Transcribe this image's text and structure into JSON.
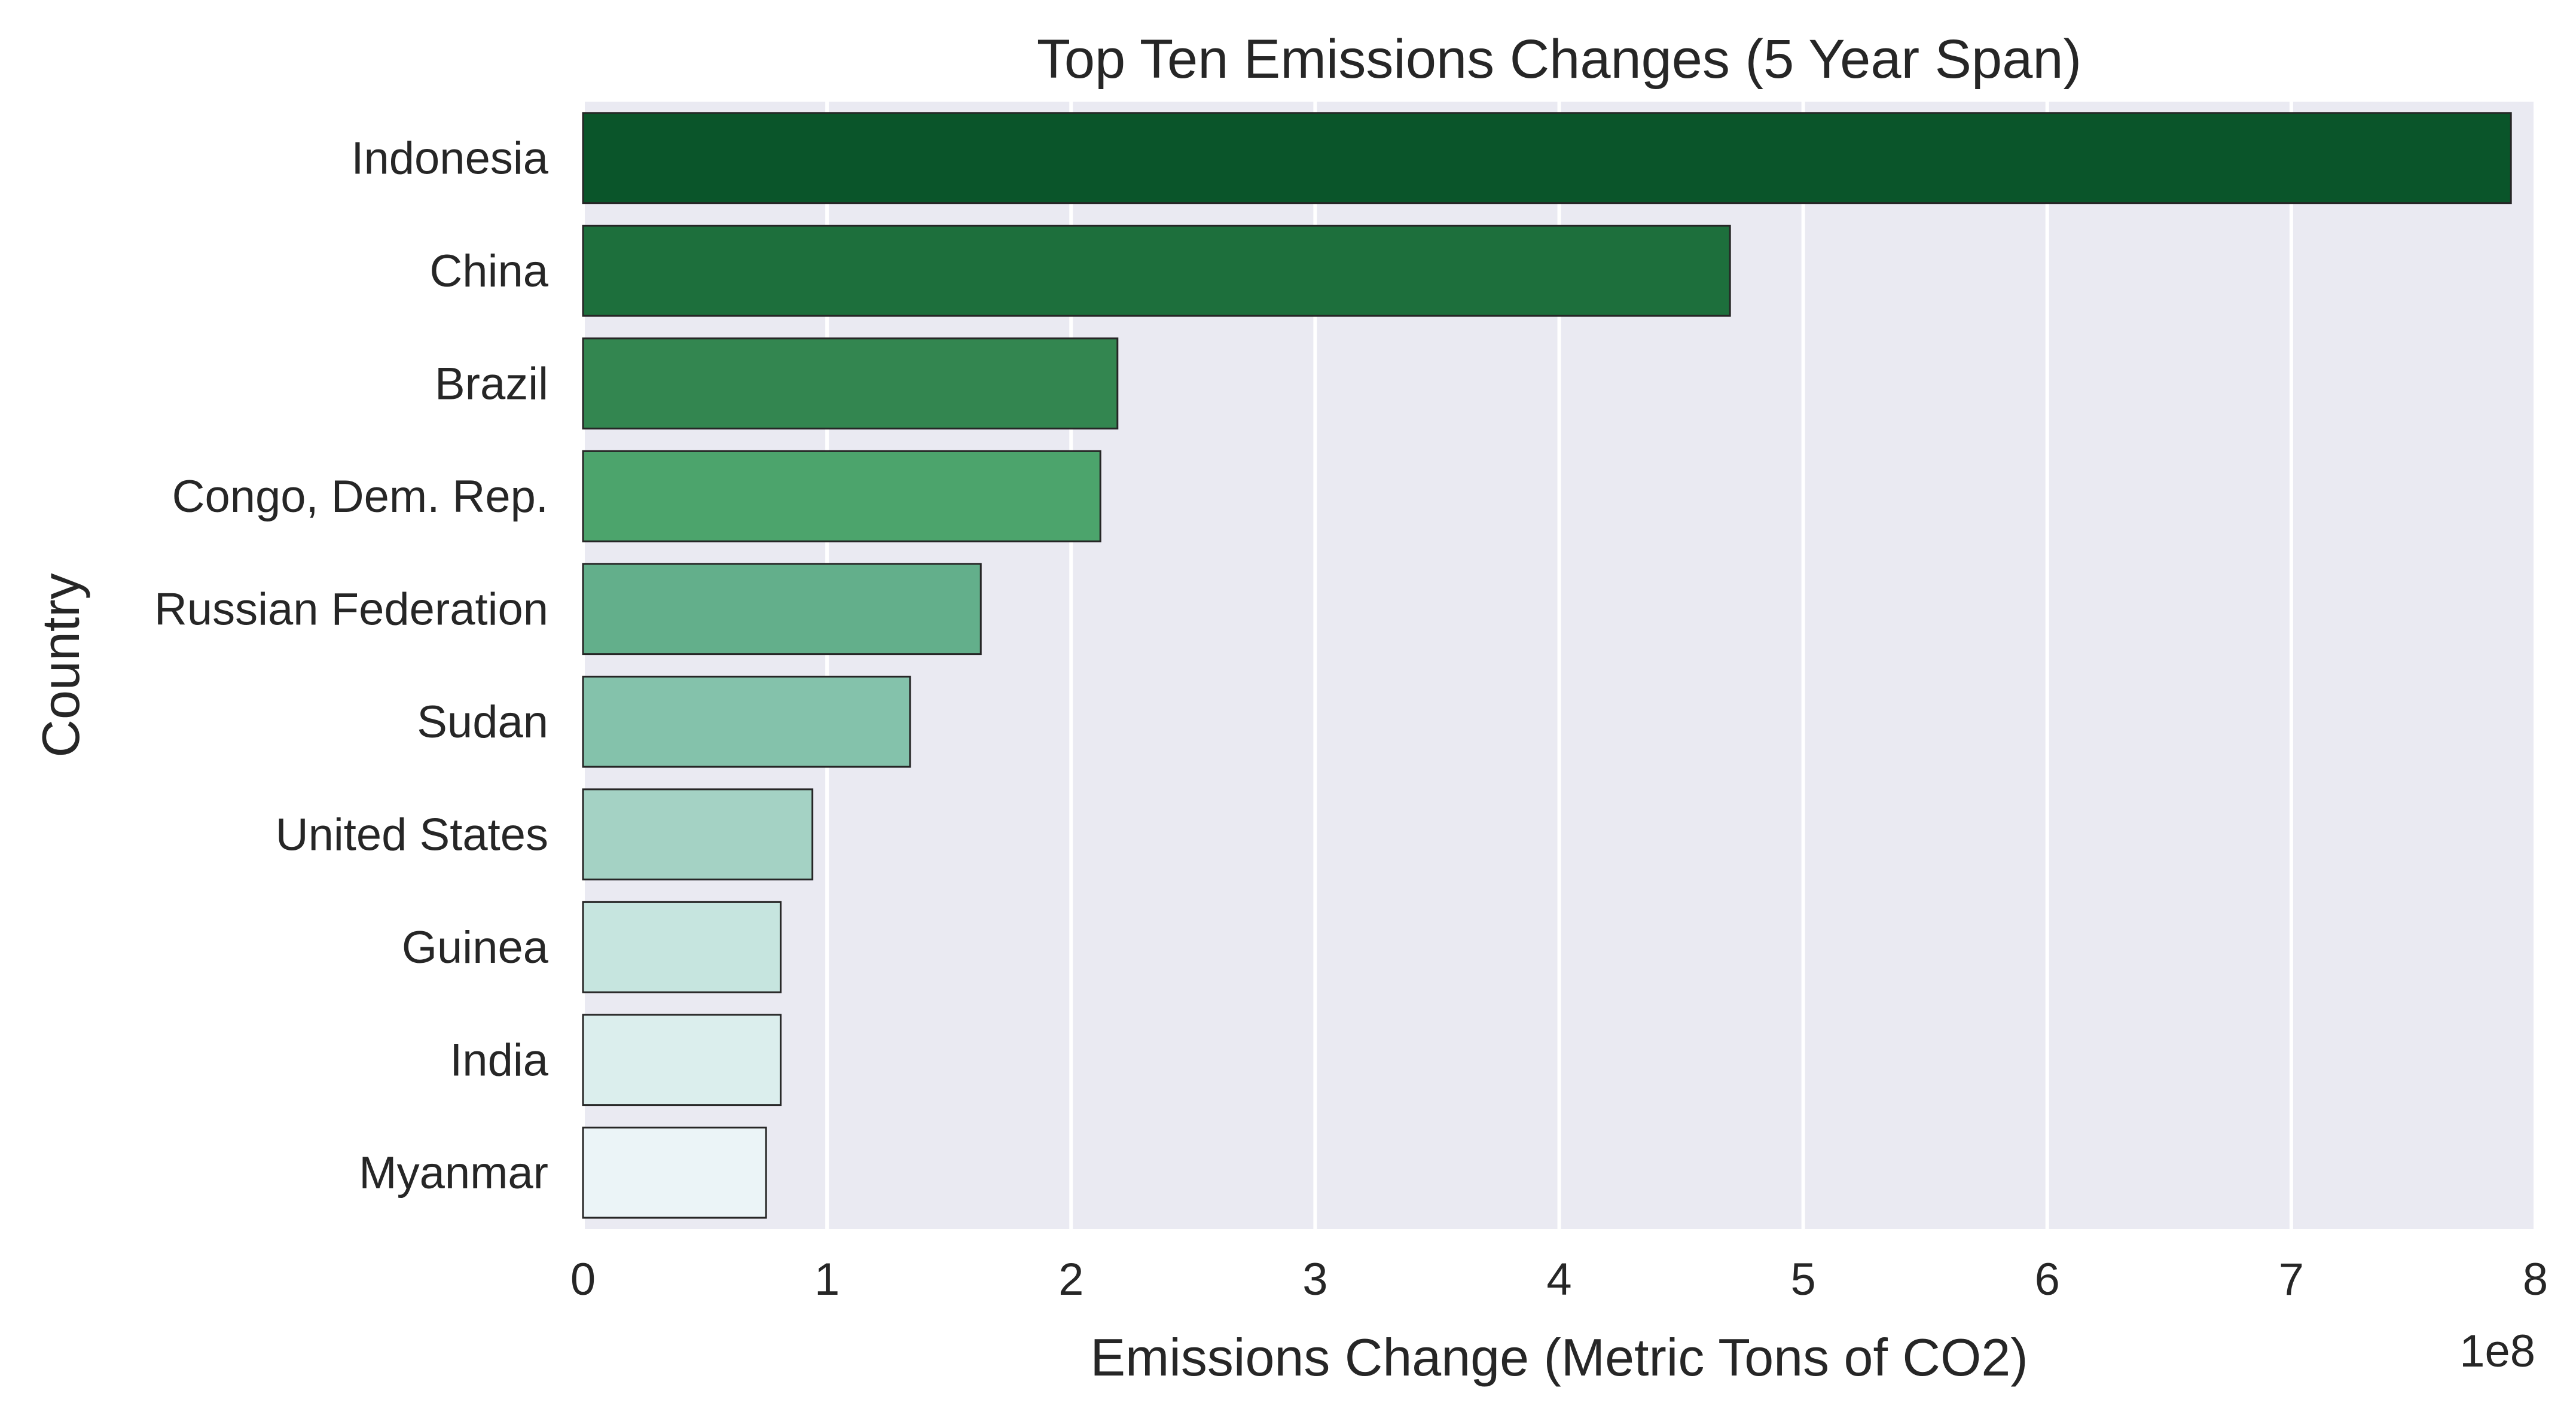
{
  "chart_data": {
    "type": "bar",
    "orientation": "horizontal",
    "title": "Top Ten Emissions Changes (5 Year Span)",
    "xlabel": "Emissions Change (Metric Tons of CO2)",
    "ylabel": "Country",
    "x_offset_label": "1e8",
    "x_scale_factor": 100000000,
    "xlim": [
      0,
      8
    ],
    "xticks": [
      0,
      1,
      2,
      3,
      4,
      5,
      6,
      7,
      8
    ],
    "grid": true,
    "categories": [
      "Indonesia",
      "China",
      "Brazil",
      "Congo, Dem. Rep.",
      "Russian Federation",
      "Sudan",
      "United States",
      "Guinea",
      "India",
      "Myanmar"
    ],
    "values": [
      7.9,
      4.7,
      2.19,
      2.12,
      1.63,
      1.34,
      0.94,
      0.81,
      0.81,
      0.75
    ],
    "colors": [
      "#0a552a",
      "#1d6f3c",
      "#338650",
      "#4ca46c",
      "#63af8b",
      "#84c2ab",
      "#a4d2c4",
      "#c6e5df",
      "#dbeeed",
      "#ebf4f7"
    ],
    "plot_background": "#eaeaf2",
    "grid_color": "#ffffff"
  }
}
